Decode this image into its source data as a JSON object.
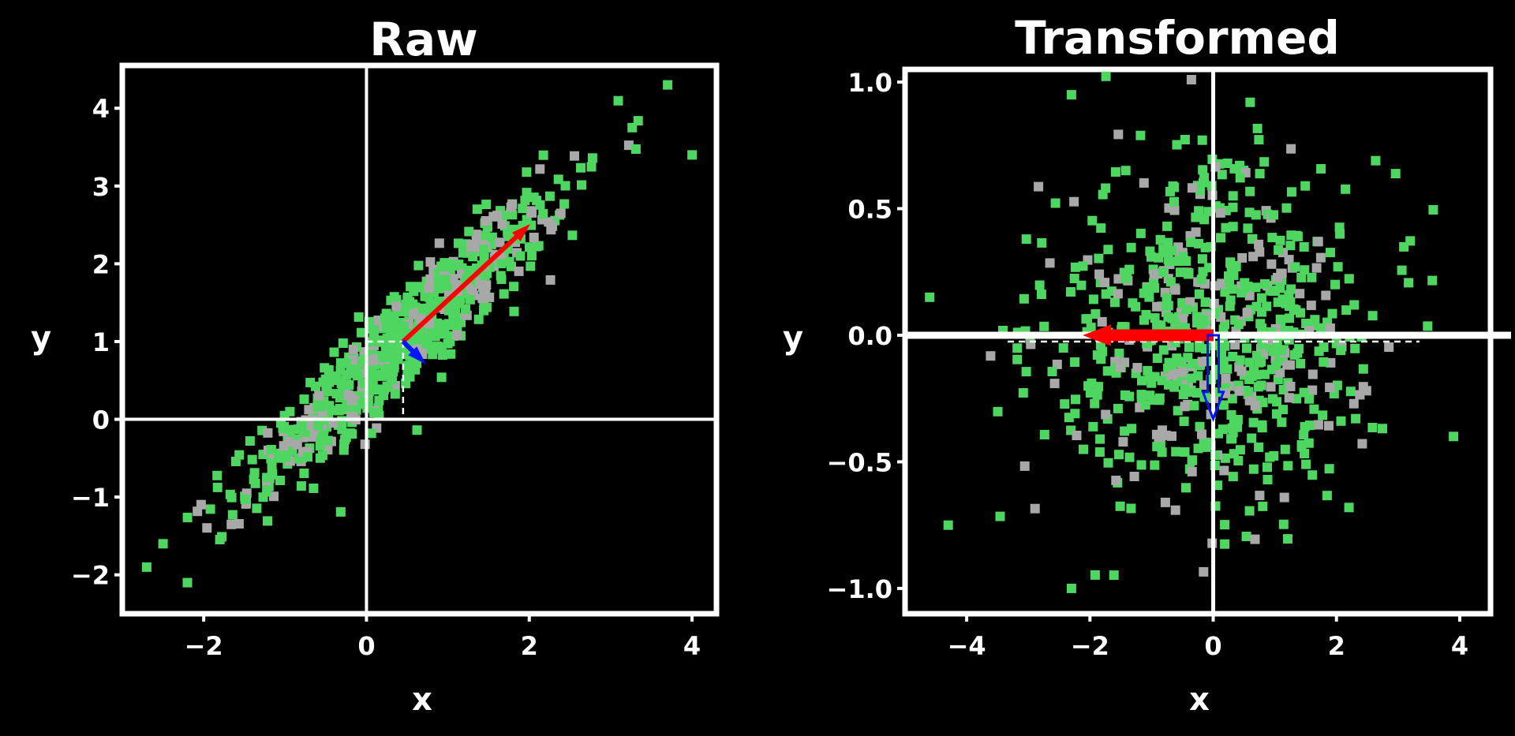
{
  "chart_data": [
    {
      "type": "scatter",
      "title": "Raw",
      "xlabel": "x",
      "ylabel": "y",
      "xlim": [
        -3.0,
        4.3
      ],
      "ylim": [
        -2.5,
        4.55
      ],
      "x_ticks": [
        -2,
        0,
        2,
        4
      ],
      "y_ticks": [
        -2,
        -1,
        0,
        1,
        2,
        3,
        4
      ],
      "x_tick_labels": [
        "−2",
        "0",
        "2",
        "4"
      ],
      "y_tick_labels": [
        "−2",
        "−1",
        "0",
        "1",
        "2",
        "3",
        "4"
      ],
      "grid": false,
      "zero_lines": true,
      "legend": "none",
      "marker_color": "#4fd660",
      "mean": [
        0.45,
        1.0
      ],
      "vectors": [
        {
          "color": "#ff0000",
          "from": [
            0.45,
            1.0
          ],
          "to": [
            2.0,
            2.5
          ],
          "width": "thin"
        },
        {
          "color": "#0015ff",
          "from": [
            0.45,
            1.0
          ],
          "to": [
            0.72,
            0.72
          ],
          "width": "thin"
        }
      ],
      "n_points": 700,
      "point_distribution": {
        "mean": [
          0.45,
          1.0
        ],
        "principal_axis_slope": 1.0,
        "std_major": 1.35,
        "std_minor": 0.24
      },
      "outliers": [
        [
          3.7,
          4.3
        ],
        [
          4.0,
          3.4
        ],
        [
          -2.7,
          -1.9
        ],
        [
          -2.2,
          -2.1
        ],
        [
          -2.5,
          -1.6
        ]
      ]
    },
    {
      "type": "scatter",
      "title": "Transformed",
      "xlabel": "x",
      "ylabel": "y",
      "xlim": [
        -5.0,
        4.5
      ],
      "ylim": [
        -1.1,
        1.05
      ],
      "x_ticks": [
        -4,
        -2,
        0,
        2,
        4
      ],
      "y_ticks": [
        -1.0,
        -0.5,
        0.0,
        0.5,
        1.0
      ],
      "x_tick_labels": [
        "−4",
        "−2",
        "0",
        "2",
        "4"
      ],
      "y_tick_labels": [
        "−1.0",
        "−0.5",
        "0.0",
        "0.5",
        "1.0"
      ],
      "grid": false,
      "zero_lines": true,
      "legend": "none",
      "marker_color": "#4fd660",
      "mean": [
        0.0,
        0.0
      ],
      "vectors": [
        {
          "color": "#ff0000",
          "from": [
            0.0,
            0.0
          ],
          "to": [
            -2.1,
            0.0
          ],
          "width": "thick"
        },
        {
          "color": "#0015ff",
          "from": [
            0.0,
            0.0
          ],
          "to": [
            0.0,
            -0.33
          ],
          "width": "thick",
          "hollow": true
        }
      ],
      "n_points": 700,
      "point_distribution": {
        "mean": [
          0.0,
          0.0
        ],
        "std_x": 1.35,
        "std_y": 0.33
      },
      "outliers": [
        [
          -2.3,
          0.95
        ],
        [
          -4.3,
          -0.75
        ],
        [
          -4.6,
          0.15
        ],
        [
          -2.3,
          -1.0
        ],
        [
          0.6,
          0.92
        ],
        [
          3.9,
          -0.4
        ]
      ]
    }
  ]
}
